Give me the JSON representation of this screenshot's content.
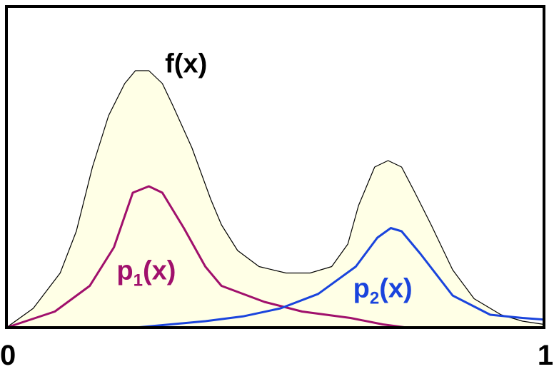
{
  "chart_data": {
    "type": "line",
    "title": "",
    "xlabel": "",
    "ylabel": "",
    "xlim": [
      0,
      1
    ],
    "ylim": [
      0,
      1
    ],
    "grid": false,
    "legend": "none",
    "x_ticks": [
      {
        "value": 0,
        "label": "0"
      },
      {
        "value": 1,
        "label": "1"
      }
    ],
    "series": [
      {
        "name": "f(x)",
        "label_main": "f(x)",
        "label_sub": "",
        "label_tail": "",
        "color": "#000000",
        "fill": "#ffffe6",
        "filled": true,
        "label_anchor": {
          "x": 0.295,
          "y": 0.795
        },
        "points": [
          [
            0.0,
            0.0
          ],
          [
            0.05,
            0.06
          ],
          [
            0.1,
            0.17
          ],
          [
            0.13,
            0.3
          ],
          [
            0.16,
            0.5
          ],
          [
            0.19,
            0.66
          ],
          [
            0.22,
            0.76
          ],
          [
            0.24,
            0.8
          ],
          [
            0.265,
            0.8
          ],
          [
            0.29,
            0.76
          ],
          [
            0.31,
            0.69
          ],
          [
            0.345,
            0.56
          ],
          [
            0.38,
            0.4
          ],
          [
            0.4,
            0.32
          ],
          [
            0.43,
            0.24
          ],
          [
            0.47,
            0.19
          ],
          [
            0.52,
            0.17
          ],
          [
            0.565,
            0.17
          ],
          [
            0.605,
            0.19
          ],
          [
            0.635,
            0.26
          ],
          [
            0.655,
            0.38
          ],
          [
            0.685,
            0.5
          ],
          [
            0.71,
            0.52
          ],
          [
            0.735,
            0.5
          ],
          [
            0.76,
            0.42
          ],
          [
            0.79,
            0.32
          ],
          [
            0.83,
            0.18
          ],
          [
            0.87,
            0.09
          ],
          [
            0.92,
            0.04
          ],
          [
            0.96,
            0.02
          ],
          [
            1.0,
            0.01
          ]
        ]
      },
      {
        "name": "p1(x)",
        "label_main": "p",
        "label_sub": "1",
        "label_tail": "(x)",
        "color": "#a0106c",
        "filled": false,
        "label_anchor": {
          "x": 0.205,
          "y": 0.15
        },
        "points": [
          [
            0.0,
            0.0
          ],
          [
            0.09,
            0.05
          ],
          [
            0.155,
            0.13
          ],
          [
            0.2,
            0.25
          ],
          [
            0.235,
            0.42
          ],
          [
            0.265,
            0.44
          ],
          [
            0.29,
            0.42
          ],
          [
            0.33,
            0.31
          ],
          [
            0.37,
            0.19
          ],
          [
            0.4,
            0.13
          ],
          [
            0.48,
            0.08
          ],
          [
            0.55,
            0.05
          ],
          [
            0.64,
            0.03
          ],
          [
            0.7,
            0.01
          ],
          [
            0.745,
            0.0
          ]
        ]
      },
      {
        "name": "p2(x)",
        "label_main": "p",
        "label_sub": "2",
        "label_tail": "(x)",
        "color": "#1a44dd",
        "filled": false,
        "label_anchor": {
          "x": 0.645,
          "y": 0.095
        },
        "points": [
          [
            0.24,
            0.0
          ],
          [
            0.37,
            0.02
          ],
          [
            0.44,
            0.035
          ],
          [
            0.51,
            0.06
          ],
          [
            0.58,
            0.105
          ],
          [
            0.65,
            0.19
          ],
          [
            0.69,
            0.28
          ],
          [
            0.715,
            0.31
          ],
          [
            0.735,
            0.3
          ],
          [
            0.77,
            0.23
          ],
          [
            0.83,
            0.1
          ],
          [
            0.9,
            0.04
          ],
          [
            0.96,
            0.03
          ],
          [
            1.0,
            0.025
          ]
        ]
      }
    ]
  }
}
